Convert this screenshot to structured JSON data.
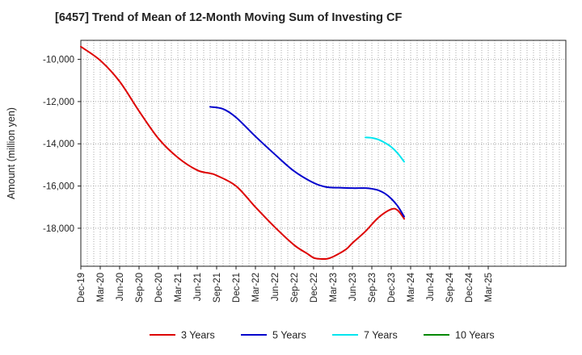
{
  "chart_data": {
    "type": "line",
    "title": "[6457]  Trend of Mean of 12-Month Moving Sum of Investing CF",
    "xlabel": "",
    "ylabel": "Amount (million yen)",
    "ylim": [
      -19800,
      -9100
    ],
    "yticks": [
      -10000,
      -12000,
      -14000,
      -16000,
      -18000
    ],
    "ytick_labels": [
      "-10,000",
      "-12,000",
      "-14,000",
      "-16,000",
      "-18,000"
    ],
    "x_range_months": [
      0,
      75
    ],
    "xtick_labels": [
      "Dec-19",
      "Mar-20",
      "Jun-20",
      "Sep-20",
      "Dec-20",
      "Mar-21",
      "Jun-21",
      "Sep-21",
      "Dec-21",
      "Mar-22",
      "Jun-22",
      "Sep-22",
      "Dec-22",
      "Mar-23",
      "Jun-23",
      "Sep-23",
      "Dec-23",
      "Mar-24",
      "Jun-24",
      "Sep-24",
      "Dec-24",
      "Mar-25"
    ],
    "grid": true,
    "legend_position": "bottom",
    "series": [
      {
        "name": "3 Years",
        "color": "#dd0000",
        "x": [
          0,
          3,
          6,
          9,
          12,
          15,
          18,
          20,
          21,
          24,
          27,
          30,
          33,
          35,
          36,
          37,
          38,
          39,
          41,
          42,
          44,
          46,
          48,
          49,
          50
        ],
        "values": [
          -9400,
          -10050,
          -11050,
          -12450,
          -13750,
          -14650,
          -15250,
          -15400,
          -15500,
          -16000,
          -17000,
          -17950,
          -18800,
          -19200,
          -19400,
          -19450,
          -19450,
          -19350,
          -19000,
          -18700,
          -18150,
          -17500,
          -17100,
          -17150,
          -17550
        ]
      },
      {
        "name": "5 Years",
        "color": "#0000cc",
        "x": [
          20,
          22,
          24,
          27,
          30,
          33,
          36,
          38,
          40,
          42,
          44,
          45,
          46,
          47,
          48,
          49,
          50
        ],
        "values": [
          -12250,
          -12350,
          -12750,
          -13650,
          -14500,
          -15300,
          -15850,
          -16050,
          -16080,
          -16100,
          -16100,
          -16130,
          -16200,
          -16350,
          -16600,
          -16950,
          -17450
        ]
      },
      {
        "name": "7 Years",
        "color": "#00e5ee",
        "x": [
          44,
          45,
          46,
          47,
          48,
          49,
          50
        ],
        "values": [
          -13700,
          -13720,
          -13800,
          -13950,
          -14150,
          -14450,
          -14850
        ]
      },
      {
        "name": "10 Years",
        "color": "#008800",
        "x": [],
        "values": []
      }
    ]
  }
}
